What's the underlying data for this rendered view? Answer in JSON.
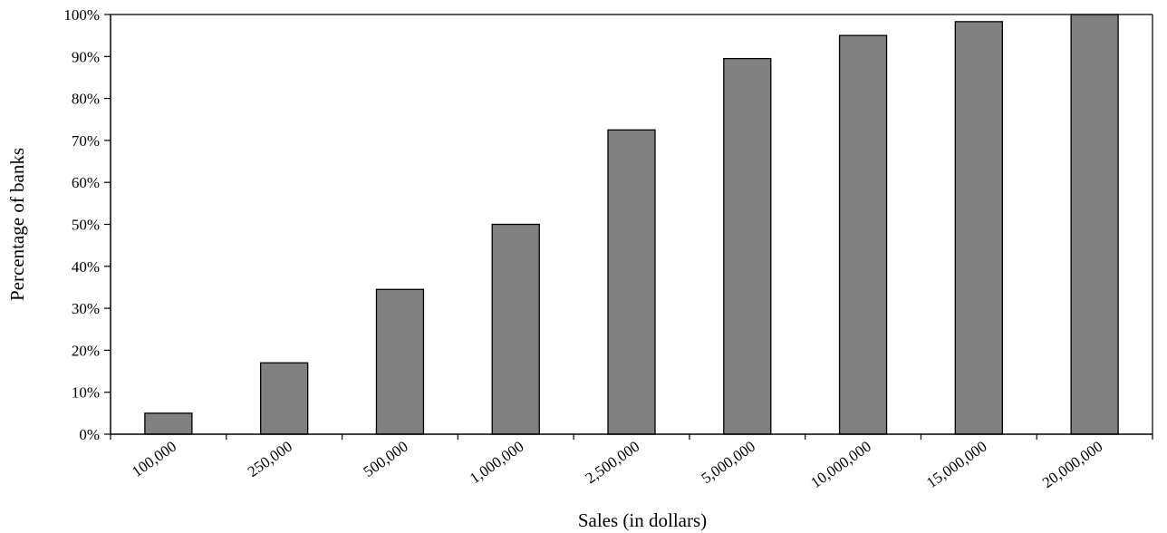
{
  "chart_data": {
    "type": "bar",
    "title": "",
    "xlabel": "Sales (in dollars)",
    "ylabel": "Percentage of banks",
    "categories": [
      "100,000",
      "250,000",
      "500,000",
      "1,000,000",
      "2,500,000",
      "5,000,000",
      "10,000,000",
      "15,000,000",
      "20,000,000"
    ],
    "values": [
      5,
      17,
      34.5,
      50,
      72.5,
      89.5,
      95,
      98.3,
      100
    ],
    "ylim": [
      0,
      100
    ],
    "yticks": [
      0,
      10,
      20,
      30,
      40,
      50,
      60,
      70,
      80,
      90,
      100
    ],
    "ytick_labels": [
      "0%",
      "10%",
      "20%",
      "30%",
      "40%",
      "50%",
      "60%",
      "70%",
      "80%",
      "90%",
      "100%"
    ],
    "grid": false,
    "legend": "none",
    "colors": {
      "bar": "#808080",
      "bar_edge": "#000000",
      "axis": "#000000"
    }
  }
}
